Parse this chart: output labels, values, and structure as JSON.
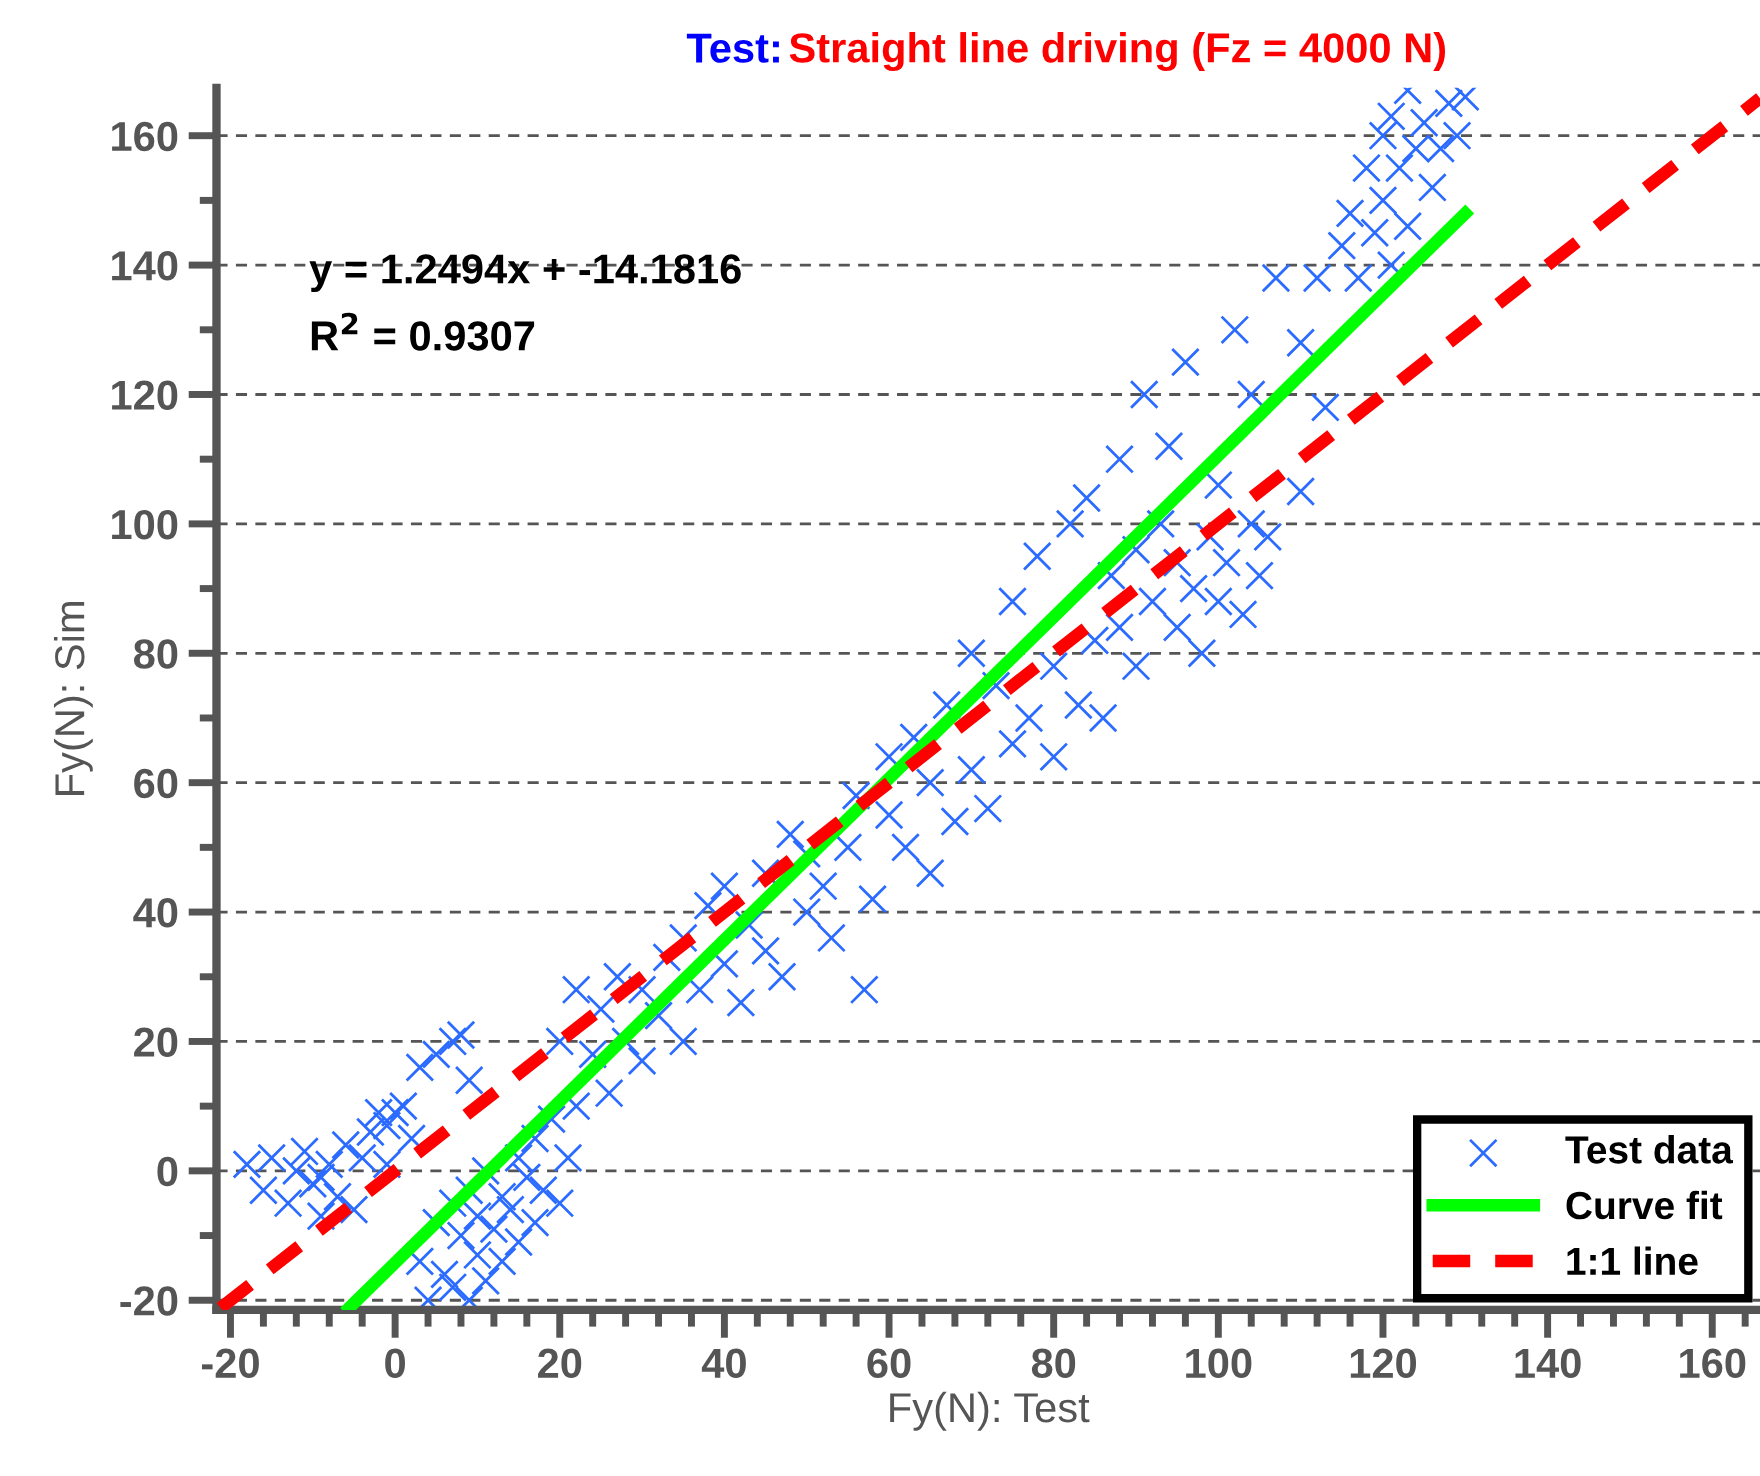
{
  "chart_data": {
    "type": "scatter",
    "title": "Test:",
    "subtitle": "Straight line driving (Fz = 4000 N)",
    "xlabel": "Fy(N): Test",
    "ylabel": "Fy(N): Sim",
    "annotations": [
      "y = 1.2494x + -14.1816",
      "R$^{2}$ = 0.9307"
    ],
    "xlim": [
      -21.7,
      165.8
    ],
    "ylim": [
      -21.5,
      167.4
    ],
    "xticks": [
      -20,
      0,
      20,
      40,
      60,
      80,
      100,
      120,
      140,
      160
    ],
    "yticks": [
      -20,
      0,
      20,
      40,
      60,
      80,
      100,
      120,
      140,
      160
    ],
    "grid": "y",
    "legend": "bottom right",
    "series": [
      {
        "name": "Test data",
        "marker": "cross",
        "color": "#2b6bff",
        "x": [
          -18,
          -16,
          -15,
          -13,
          -12,
          -11,
          -10,
          -9,
          -8,
          -9,
          -7,
          -6,
          -5,
          -4,
          -3,
          -2,
          -1,
          0,
          1,
          2,
          -1,
          3,
          5,
          7,
          9,
          8,
          3,
          4,
          5,
          6,
          7,
          7,
          8,
          9,
          9,
          10,
          10,
          11,
          11,
          12,
          13,
          13,
          14,
          15,
          15,
          16,
          17,
          17,
          18,
          19,
          20,
          21,
          22,
          20,
          22,
          24,
          25,
          26,
          27,
          28,
          30,
          30,
          32,
          33,
          35,
          35,
          37,
          38,
          40,
          40,
          42,
          43,
          45,
          45,
          47,
          48,
          50,
          50,
          52,
          53,
          55,
          56,
          57,
          58,
          60,
          60,
          62,
          63,
          65,
          65,
          67,
          68,
          70,
          70,
          72,
          73,
          75,
          75,
          77,
          78,
          80,
          80,
          82,
          83,
          84,
          85,
          86,
          87,
          88,
          88,
          90,
          90,
          91,
          92,
          93,
          94,
          95,
          95,
          96,
          97,
          98,
          99,
          100,
          100,
          101,
          102,
          103,
          104,
          105,
          106,
          104,
          107,
          110,
          110,
          112,
          113,
          115,
          116,
          117,
          118,
          119,
          120,
          120,
          121,
          122,
          123,
          123,
          124,
          125,
          126,
          127,
          128,
          129,
          130,
          121
        ],
        "values": [
          1,
          -3,
          2,
          -5,
          0,
          3,
          -2,
          -1,
          1,
          -7,
          -4,
          4,
          -6,
          2,
          6,
          9,
          7,
          9,
          10,
          5,
          1,
          16,
          18,
          20,
          14,
          21,
          -14,
          -20,
          -8,
          -16,
          -5,
          -18,
          -10,
          -20,
          -3,
          -13,
          -7,
          -17,
          0,
          -9,
          -4,
          -14,
          -6,
          2,
          -11,
          -1,
          -8,
          5,
          -3,
          8,
          -5,
          2,
          10,
          20,
          28,
          18,
          25,
          12,
          30,
          20,
          17,
          28,
          24,
          33,
          20,
          36,
          28,
          41,
          32,
          44,
          26,
          38,
          46,
          34,
          30,
          52,
          40,
          49,
          44,
          36,
          50,
          58,
          28,
          42,
          55,
          64,
          50,
          67,
          46,
          60,
          72,
          54,
          62,
          80,
          56,
          75,
          66,
          88,
          70,
          95,
          64,
          78,
          100,
          72,
          104,
          82,
          70,
          92,
          110,
          84,
          78,
          96,
          120,
          88,
          100,
          112,
          84,
          94,
          125,
          90,
          80,
          98,
          88,
          106,
          94,
          130,
          86,
          100,
          92,
          98,
          120,
          138,
          105,
          128,
          138,
          118,
          143,
          148,
          138,
          155,
          145,
          160,
          150,
          163,
          155,
          167,
          146,
          158,
          162,
          152,
          158,
          165,
          160,
          166,
          140
        ]
      },
      {
        "name": "Curve fit",
        "type": "line",
        "line_style": "solid",
        "color": "#00ff00",
        "x": [
          -5.6,
          130
        ],
        "values": [
          -21.2,
          148
        ]
      },
      {
        "name": "1:1 line",
        "type": "line",
        "line_style": "dashed",
        "color": "#ff0000",
        "x": [
          -21.2,
          165.8
        ],
        "values": [
          -21.2,
          165.8
        ]
      }
    ]
  }
}
